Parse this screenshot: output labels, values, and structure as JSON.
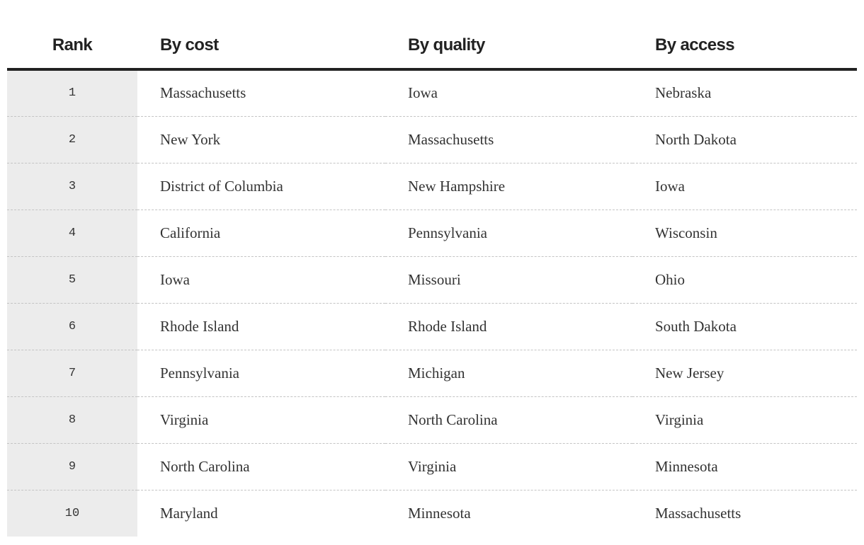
{
  "table": {
    "headers": {
      "rank": "Rank",
      "by_cost": "By cost",
      "by_quality": "By quality",
      "by_access": "By access"
    },
    "rows": [
      {
        "rank": "1",
        "by_cost": "Massachusetts",
        "by_quality": "Iowa",
        "by_access": "Nebraska"
      },
      {
        "rank": "2",
        "by_cost": "New York",
        "by_quality": "Massachusetts",
        "by_access": "North Dakota"
      },
      {
        "rank": "3",
        "by_cost": "District of Columbia",
        "by_quality": "New Hampshire",
        "by_access": "Iowa"
      },
      {
        "rank": "4",
        "by_cost": "California",
        "by_quality": "Pennsylvania",
        "by_access": "Wisconsin"
      },
      {
        "rank": "5",
        "by_cost": "Iowa",
        "by_quality": "Missouri",
        "by_access": "Ohio"
      },
      {
        "rank": "6",
        "by_cost": "Rhode Island",
        "by_quality": "Rhode Island",
        "by_access": "South Dakota"
      },
      {
        "rank": "7",
        "by_cost": "Pennsylvania",
        "by_quality": "Michigan",
        "by_access": "New Jersey"
      },
      {
        "rank": "8",
        "by_cost": "Virginia",
        "by_quality": "North Carolina",
        "by_access": "Virginia"
      },
      {
        "rank": "9",
        "by_cost": "North Carolina",
        "by_quality": "Virginia",
        "by_access": "Minnesota"
      },
      {
        "rank": "10",
        "by_cost": "Maryland",
        "by_quality": "Minnesota",
        "by_access": "Massachusetts"
      }
    ]
  },
  "colors": {
    "text": "#333333",
    "header_text": "#222222",
    "rank_column_bg": "#ececec",
    "row_divider": "#c4c4c4"
  }
}
